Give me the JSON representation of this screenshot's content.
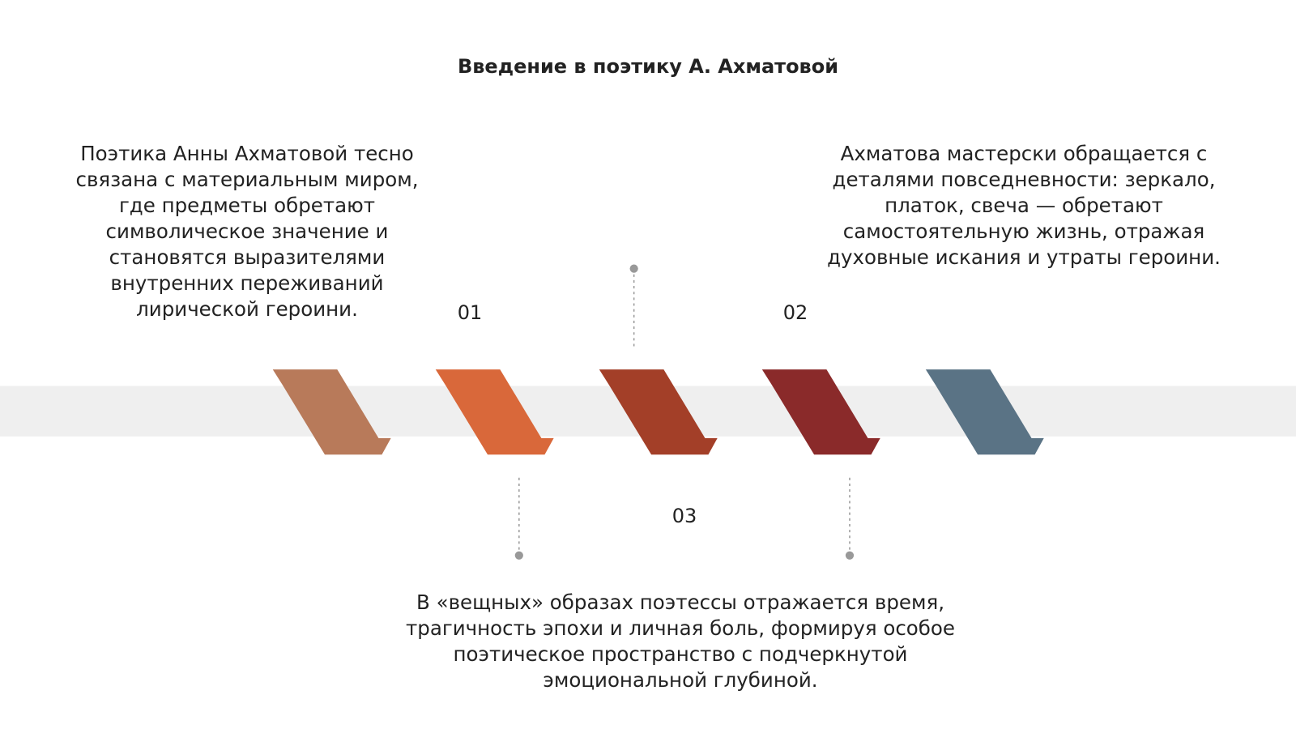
{
  "header": {
    "title": "Введение в поэтику А. Ахматовой"
  },
  "steps": [
    {
      "number": "01",
      "text": "Поэтика Анны Ахматовой тесно связана с материальным миром, где предметы обретают символическое значение и становятся выразителями внутренних переживаний лирической героини."
    },
    {
      "number": "02",
      "text": "Ахматова мастерски обращается с деталями повседневности: зеркало, платок, свеча — обретают самостоятельную жизнь, отражая духовные искания и утраты героини."
    },
    {
      "number": "03",
      "text": "В «вещных» образах поэтессы отражается время, трагичность эпохи и личная боль, формируя особое поэтическое пространство с подчеркнутой эмоциональной глубиной."
    }
  ]
}
